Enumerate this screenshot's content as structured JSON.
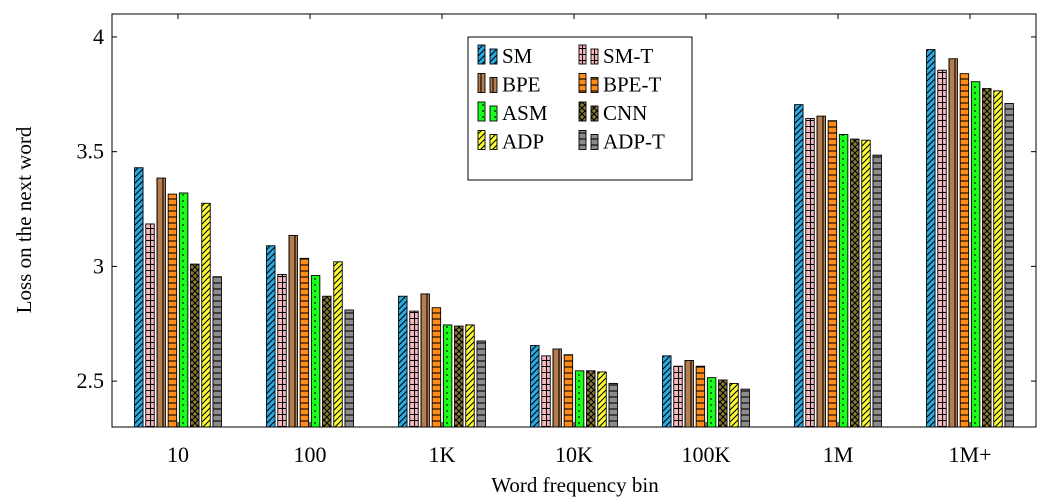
{
  "chart_data": {
    "type": "bar",
    "xlabel": "Word frequency bin",
    "ylabel": "Loss on the next word",
    "ylim": [
      2.3,
      4.1
    ],
    "yticks": [
      "2.5",
      "3",
      "3.5",
      "4"
    ],
    "categories": [
      "10",
      "100",
      "1K",
      "10K",
      "100K",
      "1M",
      "1M+"
    ],
    "legend_position": "top-center",
    "series": [
      {
        "name": "SM",
        "color": "#29abe2",
        "pattern": "diag-right",
        "values": [
          3.43,
          3.09,
          2.87,
          2.655,
          2.61,
          3.705,
          3.945
        ]
      },
      {
        "name": "SM-T",
        "color": "#f7b9c0",
        "pattern": "grid",
        "values": [
          3.185,
          2.965,
          2.805,
          2.61,
          2.565,
          3.645,
          3.855
        ]
      },
      {
        "name": "BPE",
        "color": "#b87d4e",
        "pattern": "vertical",
        "values": [
          3.385,
          3.135,
          2.88,
          2.64,
          2.59,
          3.655,
          3.905
        ]
      },
      {
        "name": "BPE-T",
        "color": "#ff8c1a",
        "pattern": "horizontal",
        "values": [
          3.315,
          3.035,
          2.82,
          2.615,
          2.565,
          3.635,
          3.84
        ]
      },
      {
        "name": "ASM",
        "color": "#1aff1a",
        "pattern": "dots",
        "values": [
          3.32,
          2.96,
          2.745,
          2.545,
          2.515,
          3.575,
          3.805
        ]
      },
      {
        "name": "CNN",
        "color": "#8a7a35",
        "pattern": "crosshatch",
        "values": [
          3.01,
          2.87,
          2.74,
          2.545,
          2.505,
          3.555,
          3.775
        ]
      },
      {
        "name": "ADP",
        "color": "#ffff33",
        "pattern": "diag-right",
        "values": [
          3.275,
          3.02,
          2.745,
          2.54,
          2.49,
          3.55,
          3.765
        ]
      },
      {
        "name": "ADP-T",
        "color": "#8c8c8c",
        "pattern": "horizontal",
        "values": [
          2.955,
          2.81,
          2.675,
          2.49,
          2.465,
          3.485,
          3.71
        ]
      }
    ]
  }
}
